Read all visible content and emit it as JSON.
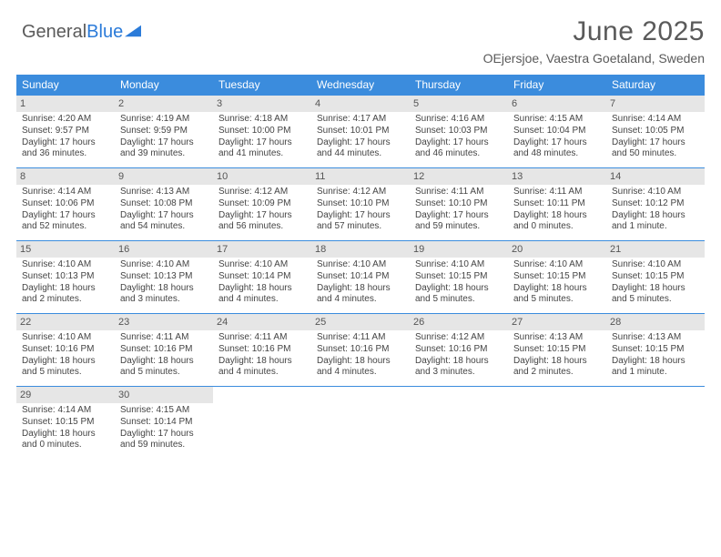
{
  "logo": {
    "text1": "General",
    "text2": "Blue"
  },
  "title": "June 2025",
  "location": "OEjersjoe, Vaestra Goetaland, Sweden",
  "colors": {
    "header_bg": "#3b8cdd",
    "header_text": "#ffffff",
    "daynum_bg": "#e6e6e6",
    "row_border": "#3b8cdd",
    "body_text": "#444444",
    "title_text": "#5a5a5a",
    "logo_gray": "#5a5a5a",
    "logo_blue": "#2b7bd9"
  },
  "weekdays": [
    "Sunday",
    "Monday",
    "Tuesday",
    "Wednesday",
    "Thursday",
    "Friday",
    "Saturday"
  ],
  "weeks": [
    [
      {
        "n": "1",
        "sr": "4:20 AM",
        "ss": "9:57 PM",
        "dl": "17 hours and 36 minutes."
      },
      {
        "n": "2",
        "sr": "4:19 AM",
        "ss": "9:59 PM",
        "dl": "17 hours and 39 minutes."
      },
      {
        "n": "3",
        "sr": "4:18 AM",
        "ss": "10:00 PM",
        "dl": "17 hours and 41 minutes."
      },
      {
        "n": "4",
        "sr": "4:17 AM",
        "ss": "10:01 PM",
        "dl": "17 hours and 44 minutes."
      },
      {
        "n": "5",
        "sr": "4:16 AM",
        "ss": "10:03 PM",
        "dl": "17 hours and 46 minutes."
      },
      {
        "n": "6",
        "sr": "4:15 AM",
        "ss": "10:04 PM",
        "dl": "17 hours and 48 minutes."
      },
      {
        "n": "7",
        "sr": "4:14 AM",
        "ss": "10:05 PM",
        "dl": "17 hours and 50 minutes."
      }
    ],
    [
      {
        "n": "8",
        "sr": "4:14 AM",
        "ss": "10:06 PM",
        "dl": "17 hours and 52 minutes."
      },
      {
        "n": "9",
        "sr": "4:13 AM",
        "ss": "10:08 PM",
        "dl": "17 hours and 54 minutes."
      },
      {
        "n": "10",
        "sr": "4:12 AM",
        "ss": "10:09 PM",
        "dl": "17 hours and 56 minutes."
      },
      {
        "n": "11",
        "sr": "4:12 AM",
        "ss": "10:10 PM",
        "dl": "17 hours and 57 minutes."
      },
      {
        "n": "12",
        "sr": "4:11 AM",
        "ss": "10:10 PM",
        "dl": "17 hours and 59 minutes."
      },
      {
        "n": "13",
        "sr": "4:11 AM",
        "ss": "10:11 PM",
        "dl": "18 hours and 0 minutes."
      },
      {
        "n": "14",
        "sr": "4:10 AM",
        "ss": "10:12 PM",
        "dl": "18 hours and 1 minute."
      }
    ],
    [
      {
        "n": "15",
        "sr": "4:10 AM",
        "ss": "10:13 PM",
        "dl": "18 hours and 2 minutes."
      },
      {
        "n": "16",
        "sr": "4:10 AM",
        "ss": "10:13 PM",
        "dl": "18 hours and 3 minutes."
      },
      {
        "n": "17",
        "sr": "4:10 AM",
        "ss": "10:14 PM",
        "dl": "18 hours and 4 minutes."
      },
      {
        "n": "18",
        "sr": "4:10 AM",
        "ss": "10:14 PM",
        "dl": "18 hours and 4 minutes."
      },
      {
        "n": "19",
        "sr": "4:10 AM",
        "ss": "10:15 PM",
        "dl": "18 hours and 5 minutes."
      },
      {
        "n": "20",
        "sr": "4:10 AM",
        "ss": "10:15 PM",
        "dl": "18 hours and 5 minutes."
      },
      {
        "n": "21",
        "sr": "4:10 AM",
        "ss": "10:15 PM",
        "dl": "18 hours and 5 minutes."
      }
    ],
    [
      {
        "n": "22",
        "sr": "4:10 AM",
        "ss": "10:16 PM",
        "dl": "18 hours and 5 minutes."
      },
      {
        "n": "23",
        "sr": "4:11 AM",
        "ss": "10:16 PM",
        "dl": "18 hours and 5 minutes."
      },
      {
        "n": "24",
        "sr": "4:11 AM",
        "ss": "10:16 PM",
        "dl": "18 hours and 4 minutes."
      },
      {
        "n": "25",
        "sr": "4:11 AM",
        "ss": "10:16 PM",
        "dl": "18 hours and 4 minutes."
      },
      {
        "n": "26",
        "sr": "4:12 AM",
        "ss": "10:16 PM",
        "dl": "18 hours and 3 minutes."
      },
      {
        "n": "27",
        "sr": "4:13 AM",
        "ss": "10:15 PM",
        "dl": "18 hours and 2 minutes."
      },
      {
        "n": "28",
        "sr": "4:13 AM",
        "ss": "10:15 PM",
        "dl": "18 hours and 1 minute."
      }
    ],
    [
      {
        "n": "29",
        "sr": "4:14 AM",
        "ss": "10:15 PM",
        "dl": "18 hours and 0 minutes."
      },
      {
        "n": "30",
        "sr": "4:15 AM",
        "ss": "10:14 PM",
        "dl": "17 hours and 59 minutes."
      },
      null,
      null,
      null,
      null,
      null
    ]
  ],
  "labels": {
    "sunrise": "Sunrise: ",
    "sunset": "Sunset: ",
    "daylight": "Daylight: "
  }
}
